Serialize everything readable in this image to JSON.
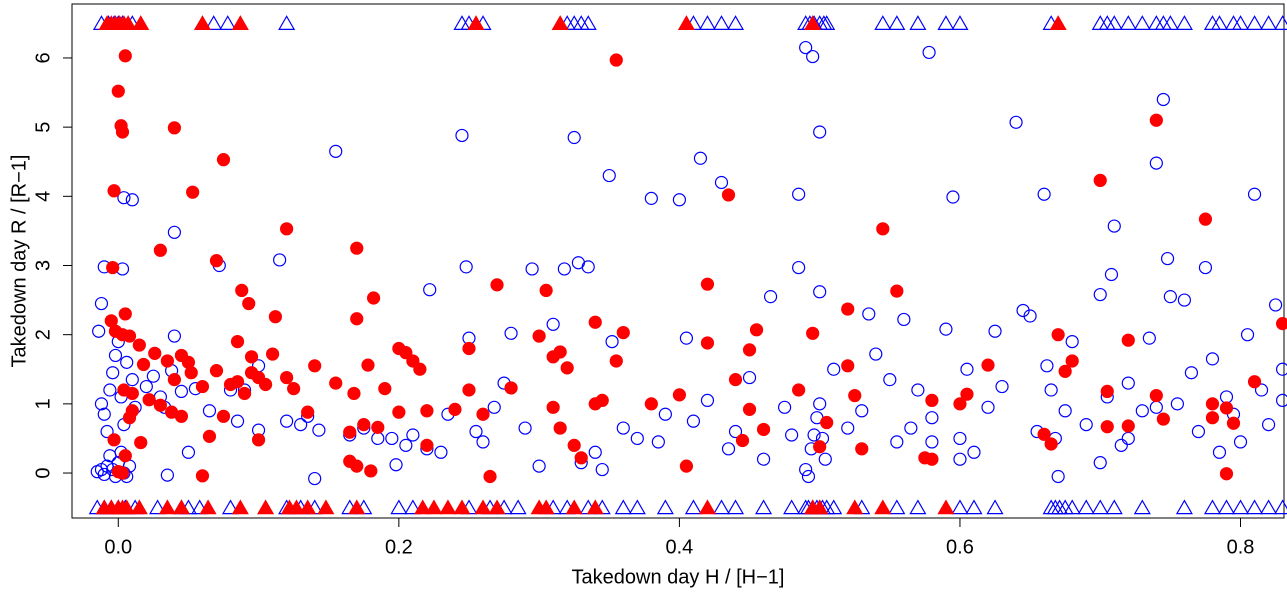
{
  "chart_data": {
    "type": "scatter",
    "xlabel": "Takedown day H / [H−1]",
    "ylabel": "Takedown day R / [R−1]",
    "xlim": [
      -0.033,
      0.831
    ],
    "ylim": [
      -0.65,
      6.78
    ],
    "xticks": [
      {
        "value": 0,
        "label": "0.0"
      },
      0.2,
      0.4,
      0.6,
      0.8
    ],
    "yticks": [
      0,
      1,
      2,
      3,
      4,
      5,
      6
    ],
    "series": [
      {
        "color": "#0000ff",
        "marker": "circle",
        "filled": false,
        "x": [
          -0.015,
          -0.012,
          -0.01,
          -0.008,
          -0.006,
          -0.004,
          -0.002,
          0.0,
          0.002,
          0.004,
          0.006,
          0.008,
          -0.012,
          -0.01,
          -0.006,
          -0.004,
          -0.002,
          0.0,
          0.002,
          0.004,
          -0.014,
          -0.012,
          -0.01,
          0.003,
          0.004,
          0.01,
          -0.008,
          0.006,
          0.01,
          0.012,
          0.02,
          0.025,
          0.03,
          0.033,
          0.038,
          0.04,
          0.04,
          0.035,
          0.045,
          0.05,
          0.055,
          0.065,
          0.072,
          0.08,
          0.085,
          0.09,
          0.1,
          0.1,
          0.12,
          0.115,
          0.13,
          0.135,
          0.14,
          0.143,
          0.155,
          0.165,
          0.175,
          0.185,
          0.195,
          0.198,
          0.205,
          0.21,
          0.22,
          0.222,
          0.23,
          0.235,
          0.245,
          0.248,
          0.25,
          0.255,
          0.26,
          0.268,
          0.275,
          0.28,
          0.29,
          0.295,
          0.3,
          0.31,
          0.318,
          0.325,
          0.328,
          0.33,
          0.335,
          0.34,
          0.345,
          0.35,
          0.352,
          0.36,
          0.37,
          0.38,
          0.385,
          0.39,
          0.4,
          0.405,
          0.41,
          0.415,
          0.42,
          0.43,
          0.435,
          0.44,
          0.45,
          0.46,
          0.465,
          0.475,
          0.48,
          0.485,
          0.485,
          0.49,
          0.495,
          0.49,
          0.492,
          0.494,
          0.496,
          0.498,
          0.5,
          0.502,
          0.504,
          0.5,
          0.5,
          0.51,
          0.52,
          0.53,
          0.535,
          0.54,
          0.55,
          0.555,
          0.56,
          0.565,
          0.57,
          0.578,
          0.58,
          0.59,
          0.595,
          0.6,
          0.605,
          0.61,
          0.62,
          0.625,
          0.63,
          0.64,
          0.645,
          0.65,
          0.655,
          0.66,
          0.662,
          0.665,
          0.668,
          0.67,
          0.675,
          0.68,
          0.69,
          0.7,
          0.705,
          0.708,
          0.71,
          0.715,
          0.72,
          0.73,
          0.735,
          0.74,
          0.745,
          0.748,
          0.75,
          0.755,
          0.76,
          0.765,
          0.77,
          0.775,
          0.78,
          0.785,
          0.79,
          0.795,
          0.8,
          0.805,
          0.81,
          0.815,
          0.82,
          0.825,
          0.83,
          0.83,
          0.7,
          0.74,
          0.72,
          0.6,
          0.58
        ],
        "values": [
          0.02,
          0.05,
          -0.02,
          0.1,
          0.25,
          0.05,
          -0.05,
          0.15,
          0.3,
          0.0,
          -0.05,
          0.1,
          1.0,
          0.85,
          1.2,
          1.45,
          1.7,
          1.9,
          1.1,
          0.7,
          2.05,
          2.45,
          2.98,
          2.95,
          3.98,
          3.95,
          0.6,
          1.6,
          1.35,
          0.95,
          1.25,
          1.4,
          1.1,
          0.95,
          1.48,
          1.98,
          3.48,
          -0.03,
          1.18,
          0.3,
          1.22,
          0.9,
          3.0,
          1.2,
          0.75,
          1.2,
          1.55,
          0.62,
          0.75,
          3.08,
          0.7,
          0.82,
          -0.08,
          0.62,
          4.65,
          0.55,
          0.65,
          0.5,
          0.5,
          0.12,
          0.4,
          0.55,
          0.35,
          2.65,
          0.3,
          0.85,
          4.88,
          2.98,
          1.95,
          0.6,
          0.45,
          0.95,
          1.3,
          2.02,
          0.65,
          2.95,
          0.1,
          2.15,
          2.95,
          4.85,
          3.04,
          0.15,
          2.98,
          0.3,
          0.05,
          4.3,
          1.9,
          0.65,
          0.5,
          3.97,
          0.45,
          0.85,
          3.95,
          1.95,
          0.75,
          4.55,
          1.05,
          4.2,
          0.35,
          0.6,
          1.38,
          0.2,
          2.55,
          0.95,
          0.55,
          4.03,
          2.97,
          6.15,
          6.02,
          0.05,
          -0.05,
          0.35,
          0.55,
          0.8,
          1.0,
          0.5,
          0.2,
          4.93,
          2.62,
          1.5,
          0.65,
          0.9,
          2.3,
          1.72,
          1.35,
          0.45,
          2.22,
          0.65,
          1.2,
          6.08,
          0.8,
          2.08,
          3.99,
          0.5,
          1.5,
          0.3,
          0.95,
          2.05,
          1.25,
          5.07,
          2.35,
          2.27,
          0.6,
          4.03,
          1.55,
          1.2,
          0.5,
          -0.05,
          0.9,
          1.9,
          0.7,
          2.58,
          1.1,
          2.87,
          3.57,
          0.4,
          1.3,
          0.9,
          1.95,
          4.48,
          5.4,
          3.1,
          2.55,
          1.0,
          2.5,
          1.45,
          0.6,
          2.97,
          1.65,
          0.3,
          1.1,
          0.85,
          0.45,
          2.0,
          4.03,
          1.2,
          0.7,
          2.43,
          1.5,
          1.05,
          0.15,
          0.95,
          0.5,
          0.2,
          0.45
        ]
      },
      {
        "color": "#ff0000",
        "marker": "circle",
        "filled": true,
        "x": [
          0.005,
          0.0,
          0.002,
          0.003,
          -0.003,
          0.04,
          0.053,
          0.075,
          -0.004,
          0.03,
          0.07,
          0.12,
          0.17,
          0.088,
          0.093,
          0.112,
          0.005,
          -0.005,
          -0.002,
          0.003,
          0.008,
          0.015,
          0.026,
          0.035,
          0.045,
          0.05,
          0.052,
          0.04,
          0.06,
          0.07,
          0.08,
          0.085,
          0.095,
          0.1,
          0.105,
          0.11,
          0.095,
          0.085,
          0.12,
          0.14,
          0.155,
          0.168,
          0.17,
          0.182,
          0.178,
          0.19,
          0.2,
          0.205,
          0.21,
          0.215,
          0.2,
          0.185,
          0.175,
          0.165,
          0.165,
          0.17,
          0.18,
          0.22,
          0.22,
          0.24,
          0.25,
          0.25,
          0.26,
          0.27,
          0.265,
          0.28,
          0.3,
          0.305,
          0.31,
          0.315,
          0.32,
          0.31,
          0.315,
          0.325,
          0.33,
          0.34,
          0.345,
          0.34,
          0.355,
          0.36,
          0.355,
          0.38,
          0.4,
          0.405,
          0.42,
          0.42,
          0.435,
          0.44,
          0.445,
          0.45,
          0.45,
          0.455,
          0.46,
          0.485,
          0.495,
          0.5,
          0.505,
          0.52,
          0.52,
          0.525,
          0.53,
          0.545,
          0.555,
          0.575,
          0.58,
          0.58,
          0.6,
          0.605,
          0.62,
          0.66,
          0.665,
          0.67,
          0.675,
          0.68,
          0.7,
          0.705,
          0.705,
          0.72,
          0.72,
          0.74,
          0.74,
          0.745,
          0.775,
          0.78,
          0.78,
          0.79,
          0.79,
          0.795,
          0.81,
          0.83,
          0.01,
          0.01,
          0.005,
          -0.003,
          0.0,
          0.003,
          0.004,
          0.008,
          0.016,
          0.022,
          0.03,
          0.038,
          0.045,
          0.06,
          0.065,
          0.075,
          0.09,
          0.1,
          0.125,
          0.135,
          0.018
        ],
        "values": [
          6.03,
          5.52,
          5.02,
          4.93,
          4.08,
          4.99,
          4.06,
          4.53,
          2.97,
          3.22,
          3.07,
          3.53,
          3.25,
          2.64,
          2.45,
          2.26,
          2.3,
          2.2,
          2.05,
          2.0,
          1.98,
          1.85,
          1.73,
          1.62,
          1.7,
          1.6,
          1.45,
          1.35,
          1.25,
          1.48,
          1.28,
          1.32,
          1.45,
          1.38,
          1.28,
          1.72,
          1.68,
          1.9,
          1.38,
          1.55,
          1.3,
          1.15,
          2.23,
          2.53,
          1.56,
          1.22,
          1.8,
          1.74,
          1.62,
          1.5,
          0.88,
          0.66,
          0.7,
          0.59,
          0.17,
          0.1,
          0.03,
          0.4,
          0.9,
          0.92,
          1.8,
          1.2,
          0.85,
          2.72,
          -0.05,
          1.23,
          1.98,
          2.64,
          1.68,
          1.75,
          1.52,
          0.95,
          0.65,
          0.4,
          0.22,
          1.0,
          1.05,
          2.18,
          5.97,
          2.03,
          1.62,
          1.0,
          1.13,
          0.1,
          2.73,
          1.88,
          4.02,
          1.35,
          0.47,
          0.92,
          1.78,
          2.07,
          0.63,
          1.2,
          2.02,
          0.38,
          0.73,
          2.37,
          1.55,
          1.12,
          0.35,
          3.53,
          2.63,
          0.22,
          0.2,
          1.05,
          1.0,
          1.14,
          1.56,
          0.56,
          0.42,
          2.0,
          1.47,
          1.62,
          4.23,
          1.18,
          0.67,
          1.92,
          0.68,
          5.1,
          1.12,
          0.78,
          3.67,
          0.8,
          1.0,
          0.94,
          -0.01,
          0.72,
          1.32,
          2.16,
          1.15,
          0.9,
          0.25,
          0.48,
          0.02,
          0.0,
          1.2,
          0.8,
          0.44,
          1.06,
          0.98,
          0.88,
          0.82,
          -0.04,
          0.53,
          0.82,
          1.15,
          0.48,
          1.22,
          0.88,
          1.57
        ]
      },
      {
        "color": "#0000ff",
        "marker": "triangle",
        "filled": false,
        "x": [
          -0.012,
          -0.007,
          -0.003,
          0.0,
          0.003,
          0.01,
          0.068,
          0.078,
          0.12,
          0.245,
          0.25,
          0.26,
          0.32,
          0.325,
          0.33,
          0.335,
          0.41,
          0.42,
          0.43,
          0.44,
          0.49,
          0.493,
          0.496,
          0.5,
          0.503,
          0.505,
          0.545,
          0.555,
          0.57,
          0.59,
          0.6,
          0.665,
          0.7,
          0.705,
          0.71,
          0.72,
          0.73,
          0.74,
          0.745,
          0.75,
          0.76,
          0.78,
          0.785,
          0.795,
          0.8,
          0.81,
          0.82,
          0.83,
          -0.015,
          -0.01,
          -0.005,
          0.0,
          0.005,
          0.012,
          0.028,
          0.045,
          0.05,
          0.058,
          0.08,
          0.12,
          0.13,
          0.14,
          0.165,
          0.175,
          0.2,
          0.21,
          0.25,
          0.265,
          0.275,
          0.285,
          0.31,
          0.32,
          0.335,
          0.345,
          0.36,
          0.37,
          0.39,
          0.41,
          0.43,
          0.44,
          0.46,
          0.48,
          0.49,
          0.492,
          0.495,
          0.498,
          0.5,
          0.502,
          0.505,
          0.51,
          0.53,
          0.555,
          0.57,
          0.6,
          0.61,
          0.625,
          0.665,
          0.668,
          0.671,
          0.675,
          0.68,
          0.69,
          0.7,
          0.71,
          0.73,
          0.76,
          0.78,
          0.79,
          0.8,
          0.81,
          0.82,
          0.83
        ],
        "values": [
          6.5,
          6.5,
          6.5,
          6.5,
          6.5,
          6.5,
          6.5,
          6.5,
          6.5,
          6.5,
          6.5,
          6.5,
          6.5,
          6.5,
          6.5,
          6.5,
          6.5,
          6.5,
          6.5,
          6.5,
          6.5,
          6.5,
          6.5,
          6.5,
          6.5,
          6.5,
          6.5,
          6.5,
          6.5,
          6.5,
          6.5,
          6.5,
          6.5,
          6.5,
          6.5,
          6.5,
          6.5,
          6.5,
          6.5,
          6.5,
          6.5,
          6.5,
          6.5,
          6.5,
          6.5,
          6.5,
          6.5,
          6.5,
          -0.5,
          -0.5,
          -0.5,
          -0.5,
          -0.5,
          -0.5,
          -0.5,
          -0.5,
          -0.5,
          -0.5,
          -0.5,
          -0.5,
          -0.5,
          -0.5,
          -0.5,
          -0.5,
          -0.5,
          -0.5,
          -0.5,
          -0.5,
          -0.5,
          -0.5,
          -0.5,
          -0.5,
          -0.5,
          -0.5,
          -0.5,
          -0.5,
          -0.5,
          -0.5,
          -0.5,
          -0.5,
          -0.5,
          -0.5,
          -0.5,
          -0.5,
          -0.5,
          -0.5,
          -0.5,
          -0.5,
          -0.5,
          -0.5,
          -0.5,
          -0.5,
          -0.5,
          -0.5,
          -0.5,
          -0.5,
          -0.5,
          -0.5,
          -0.5,
          -0.5,
          -0.5,
          -0.5,
          -0.5,
          -0.5,
          -0.5,
          -0.5,
          -0.5,
          -0.5,
          -0.5,
          -0.5,
          -0.5,
          -0.5
        ]
      },
      {
        "color": "#ff0000",
        "marker": "triangle",
        "filled": true,
        "x": [
          -0.008,
          -0.005,
          -0.002,
          0.001,
          0.004,
          0.007,
          0.016,
          0.06,
          0.087,
          0.255,
          0.315,
          0.405,
          0.495,
          0.67,
          -0.01,
          -0.005,
          0.0,
          0.003,
          0.006,
          0.015,
          0.035,
          0.045,
          0.064,
          0.087,
          0.105,
          0.122,
          0.127,
          0.135,
          0.148,
          0.17,
          0.217,
          0.225,
          0.235,
          0.245,
          0.26,
          0.27,
          0.3,
          0.305,
          0.325,
          0.34,
          0.42,
          0.495,
          0.5,
          0.525,
          0.545,
          0.59
        ],
        "values": [
          6.5,
          6.5,
          6.5,
          6.5,
          6.5,
          6.5,
          6.5,
          6.5,
          6.5,
          6.5,
          6.5,
          6.5,
          6.5,
          6.5,
          -0.5,
          -0.5,
          -0.5,
          -0.5,
          -0.5,
          -0.5,
          -0.5,
          -0.5,
          -0.5,
          -0.5,
          -0.5,
          -0.5,
          -0.5,
          -0.5,
          -0.5,
          -0.5,
          -0.5,
          -0.5,
          -0.5,
          -0.5,
          -0.5,
          -0.5,
          -0.5,
          -0.5,
          -0.5,
          -0.5,
          -0.5,
          -0.5,
          -0.5,
          -0.5,
          -0.5,
          -0.5
        ]
      }
    ]
  }
}
